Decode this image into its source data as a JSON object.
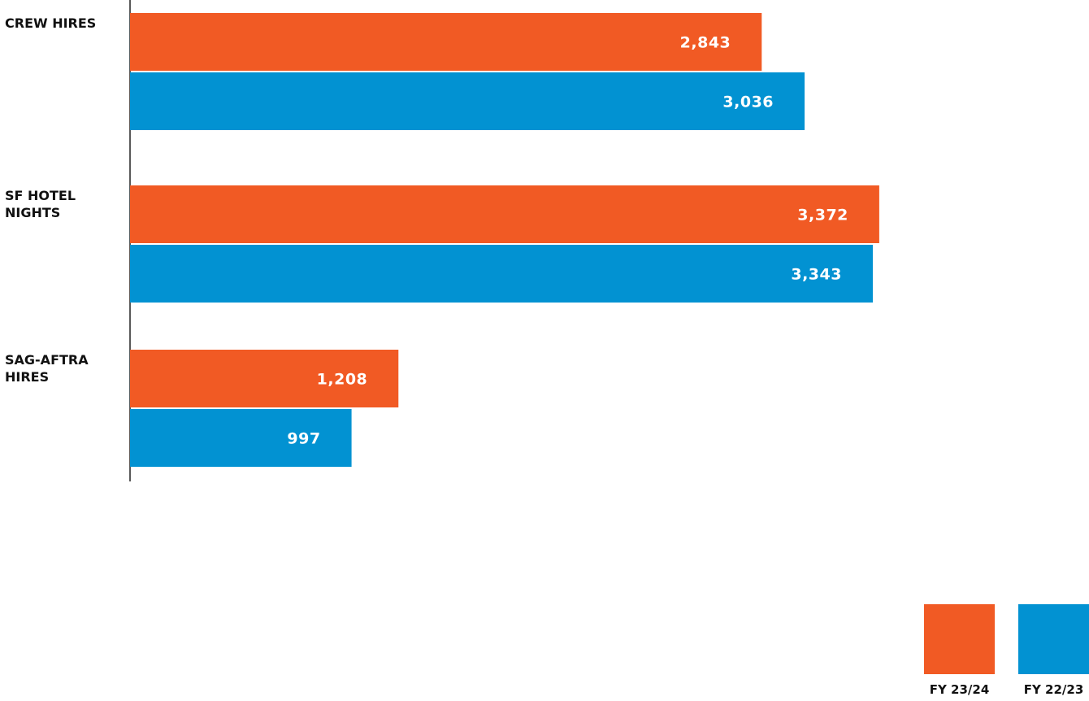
{
  "chart_data": {
    "type": "bar",
    "orientation": "horizontal",
    "categories": [
      [
        "CREW HIRES"
      ],
      [
        "SF HOTEL",
        "NIGHTS"
      ],
      [
        "SAG-AFTRA",
        "HIRES"
      ]
    ],
    "series": [
      {
        "name": "FY 23/24",
        "color": "#F15A24",
        "values": [
          2843,
          3372,
          1208
        ],
        "labels": [
          "2,843",
          "3,372",
          "1,208"
        ]
      },
      {
        "name": "FY 22/23",
        "color": "#0292D2",
        "values": [
          3036,
          3343,
          997
        ],
        "labels": [
          "3,036",
          "3,343",
          "997"
        ]
      }
    ],
    "xlim": [
      0,
      4200
    ],
    "grid": false,
    "legend_position": "bottom-right"
  }
}
